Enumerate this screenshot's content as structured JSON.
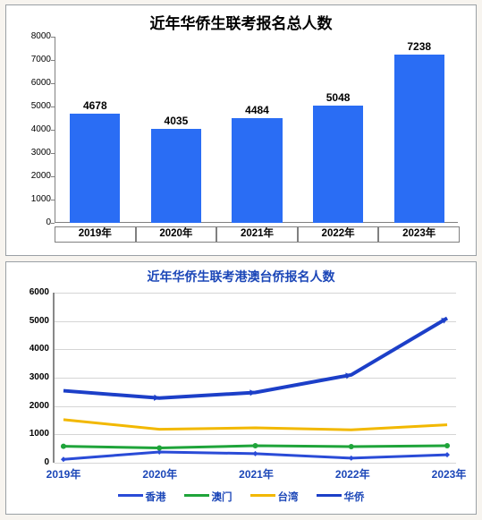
{
  "bar_chart": {
    "type": "bar",
    "title": "近年华侨生联考报名总人数",
    "title_fontsize": 17,
    "title_color": "#000000",
    "categories": [
      "2019年",
      "2020年",
      "2021年",
      "2022年",
      "2023年"
    ],
    "values": [
      4678,
      4035,
      4484,
      5048,
      7238
    ],
    "value_labels": [
      "4678",
      "4035",
      "4484",
      "5048",
      "7238"
    ],
    "bar_color": "#2a6df4",
    "ylim": [
      0,
      8000
    ],
    "ytick_step": 1000,
    "yticks": [
      "0",
      "1000",
      "2000",
      "3000",
      "4000",
      "5000",
      "6000",
      "7000",
      "8000"
    ],
    "ylabel_fontsize": 10,
    "value_label_fontsize": 12,
    "xlabel_fontsize": 11.5,
    "axis_color": "#808080",
    "background_color": "#ffffff",
    "panel_border_color": "#9aa0a5",
    "xlabel_border_color": "#808080",
    "bar_width_ratio": 0.62
  },
  "line_chart": {
    "type": "line",
    "title": "近年华侨生联考港澳台侨报名人数",
    "title_fontsize": 14,
    "title_color": "#1c47b8",
    "categories": [
      "2019年",
      "2020年",
      "2021年",
      "2022年",
      "2023年"
    ],
    "xlabel_color": "#1c47b8",
    "legend_color": "#1c47b8",
    "ylim": [
      0,
      6000
    ],
    "ytick_step": 1000,
    "yticks": [
      "0",
      "1000",
      "2000",
      "3000",
      "4000",
      "5000",
      "6000"
    ],
    "ylabel_fontsize": 10,
    "xlabel_fontsize": 12,
    "grid_color": "#d5d5d5",
    "axis_color": "#888888",
    "background_color": "#ffffff",
    "line_width": 3,
    "marker_size": 6,
    "huaqiao_line_width": 4,
    "series": [
      {
        "name": "香港",
        "color": "#2a4bd7",
        "values": [
          120,
          380,
          320,
          160,
          280
        ],
        "marker": "diamond"
      },
      {
        "name": "澳门",
        "color": "#1fa43a",
        "values": [
          580,
          520,
          600,
          570,
          600
        ],
        "marker": "circle"
      },
      {
        "name": "台湾",
        "color": "#f2b800",
        "values": [
          1520,
          1180,
          1230,
          1160,
          1340
        ],
        "marker": "none"
      },
      {
        "name": "华侨",
        "color": "#1c3fc8",
        "values": [
          2540,
          2280,
          2480,
          3100,
          5100
        ],
        "marker": "arrow"
      }
    ]
  }
}
